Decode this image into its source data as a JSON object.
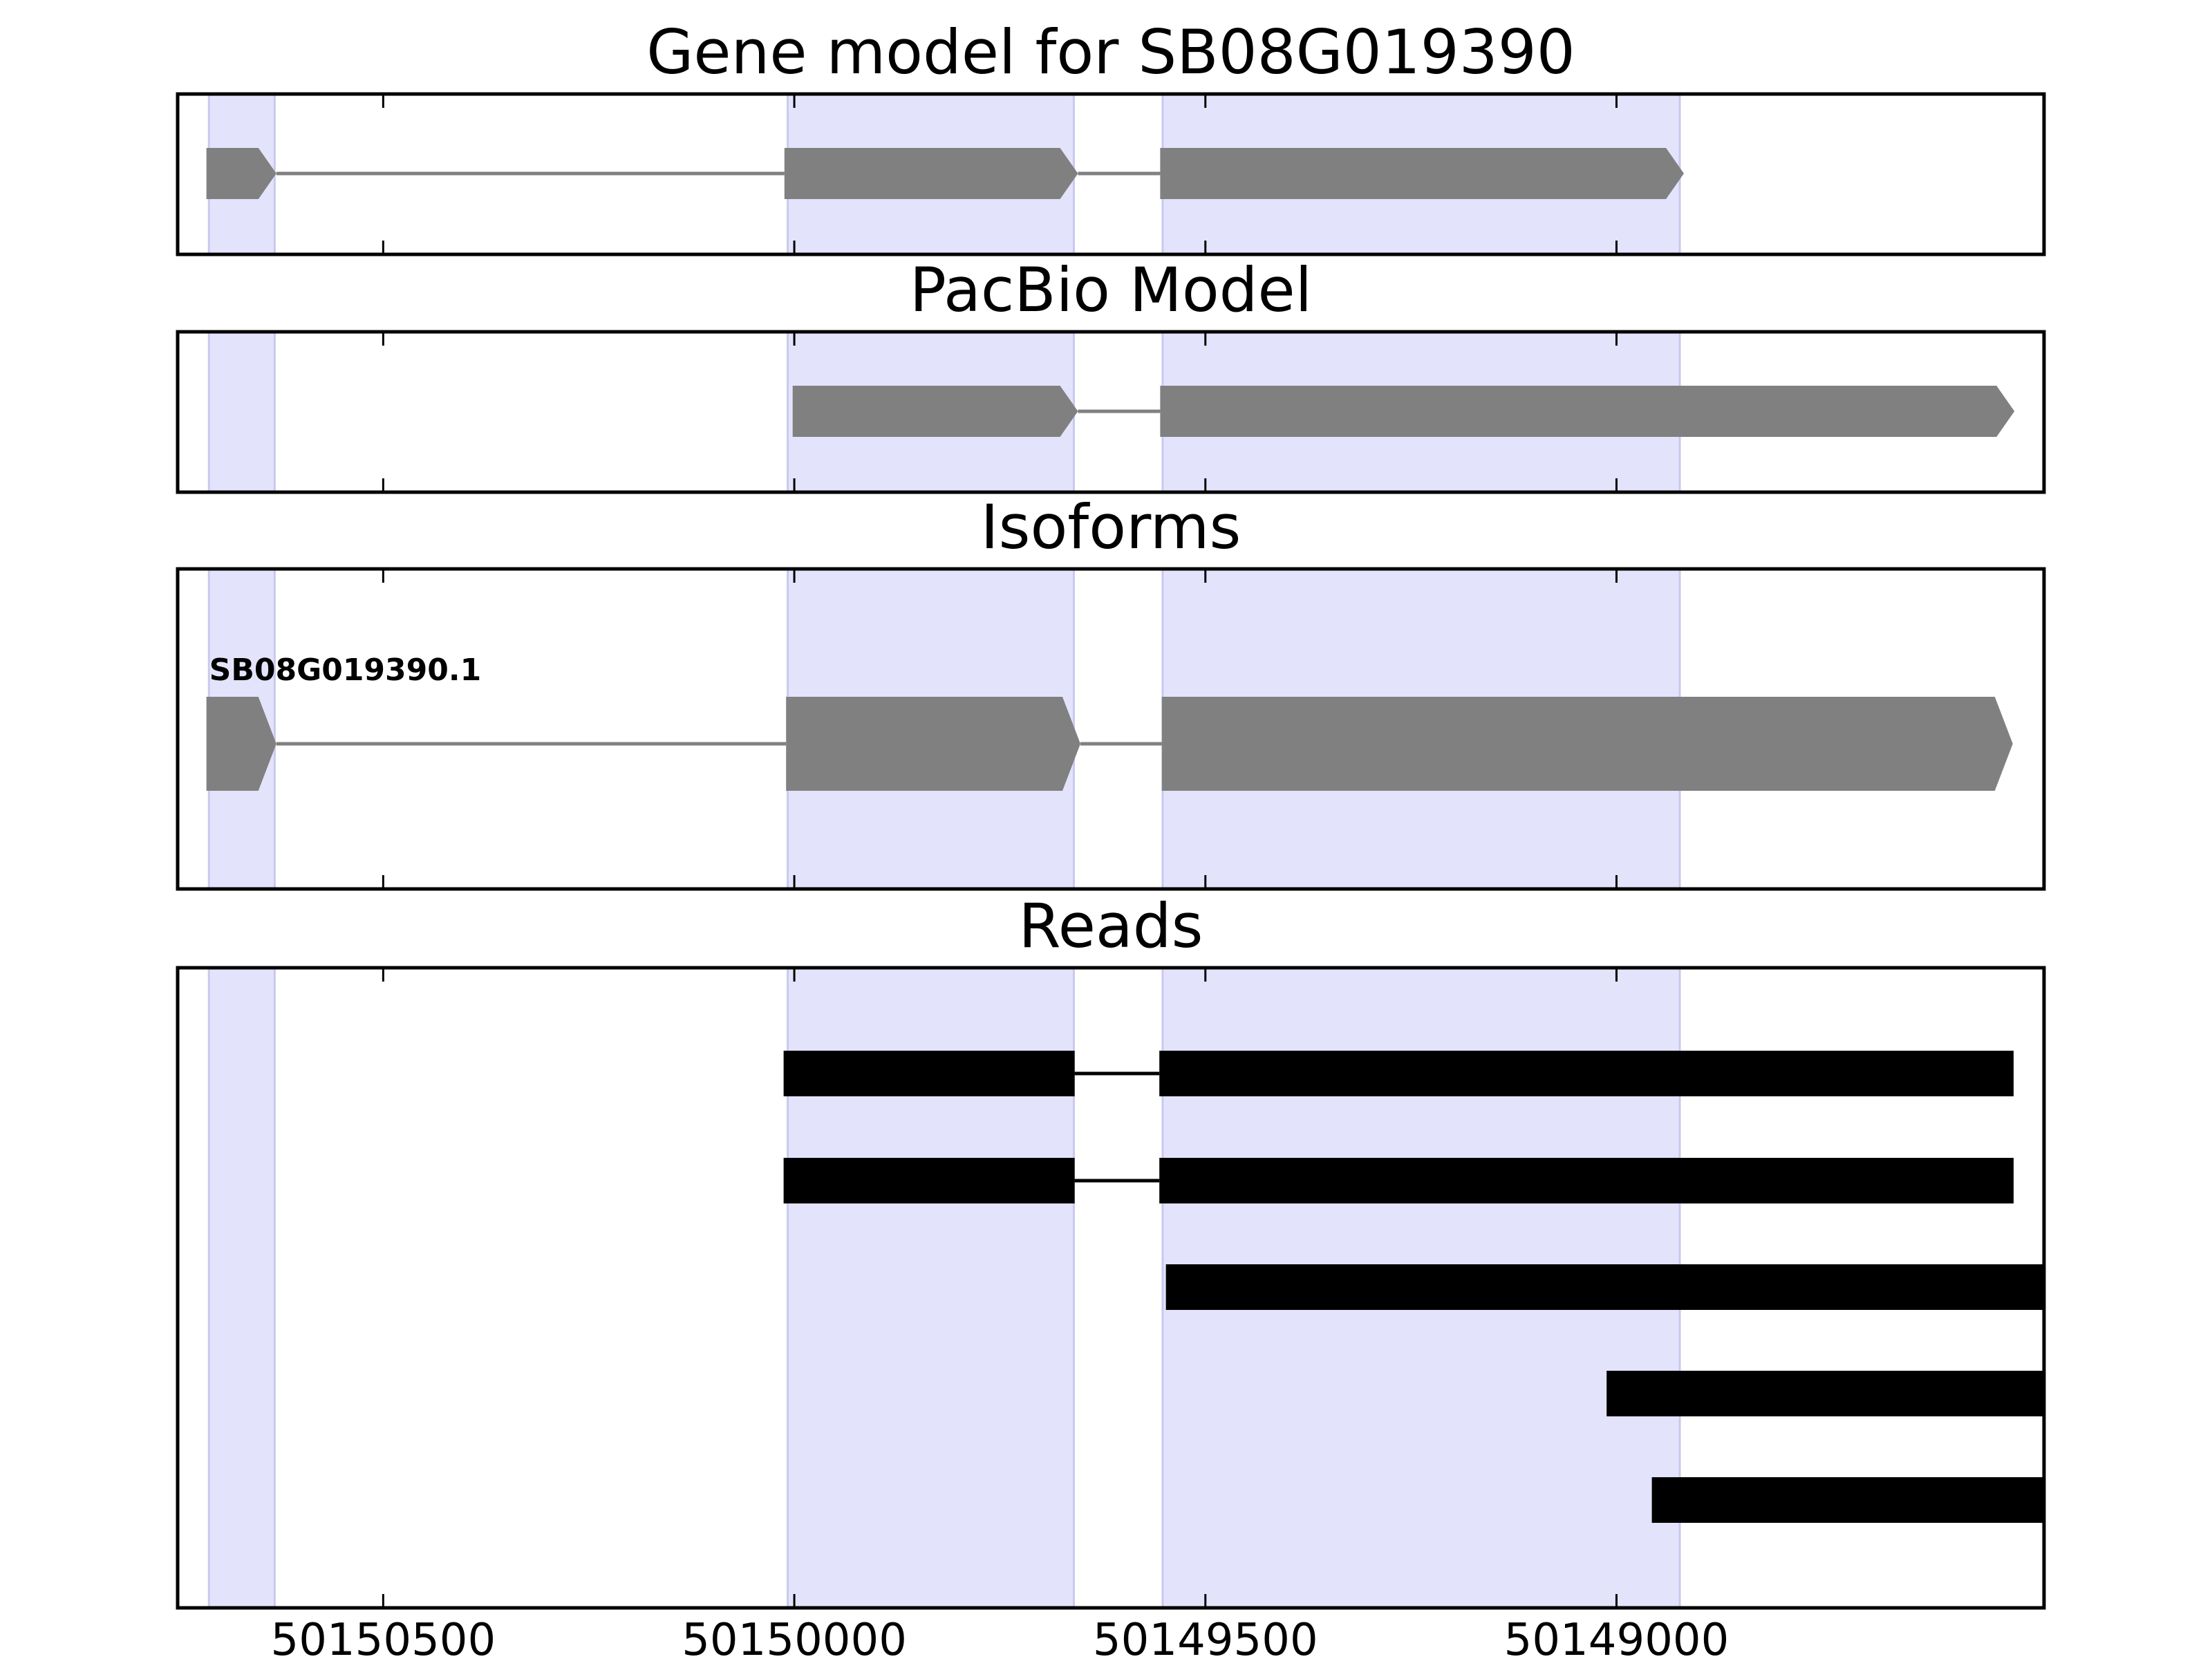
{
  "chart_data": {
    "type": "gene-track",
    "x_axis": {
      "reversed": true,
      "range": [
        50150750,
        50148480
      ],
      "ticks": [
        50150500,
        50150000,
        50149500,
        50149000
      ],
      "tick_labels": [
        "50150500",
        "50150000",
        "50149500",
        "50149000"
      ]
    },
    "exon_highlights": [
      {
        "start": 50150712,
        "end": 50150632
      },
      {
        "start": 50150008,
        "end": 50149660
      },
      {
        "start": 50149552,
        "end": 50148923
      }
    ],
    "colors": {
      "highlight": "#e3e3fc",
      "highlight_edge": "#c9c9ee",
      "feature": "#808080",
      "read": "#000000",
      "frame": "#000000"
    },
    "panels": [
      {
        "id": "gene-model",
        "title": "Gene model for SB08G019390",
        "style": "model",
        "rows": [
          {
            "exons": [
              [
                50150715,
                50150630
              ],
              [
                50150012,
                50149655
              ],
              [
                50149555,
                50148918
              ]
            ]
          }
        ]
      },
      {
        "id": "pacbio-model",
        "title": "PacBio Model",
        "style": "model",
        "rows": [
          {
            "exons": [
              [
                50150002,
                50149655
              ],
              [
                50149555,
                50148516
              ]
            ]
          }
        ]
      },
      {
        "id": "isoforms",
        "title": "Isoforms",
        "style": "model",
        "rows": [
          {
            "label": "SB08G019390.1",
            "exons": [
              [
                50150715,
                50150630
              ],
              [
                50150010,
                50149652
              ],
              [
                50149553,
                50148518
              ]
            ]
          }
        ]
      },
      {
        "id": "reads",
        "title": "Reads",
        "style": "read",
        "rows": [
          {
            "exons": [
              [
                50150013,
                50149659
              ],
              [
                50149556,
                50148517
              ]
            ]
          },
          {
            "exons": [
              [
                50150013,
                50149659
              ],
              [
                50149556,
                50148517
              ]
            ]
          },
          {
            "exons": [
              [
                50149548,
                50148480
              ]
            ]
          },
          {
            "exons": [
              [
                50149012,
                50148480
              ]
            ]
          },
          {
            "exons": [
              [
                50148957,
                50148480
              ]
            ]
          }
        ]
      }
    ]
  }
}
